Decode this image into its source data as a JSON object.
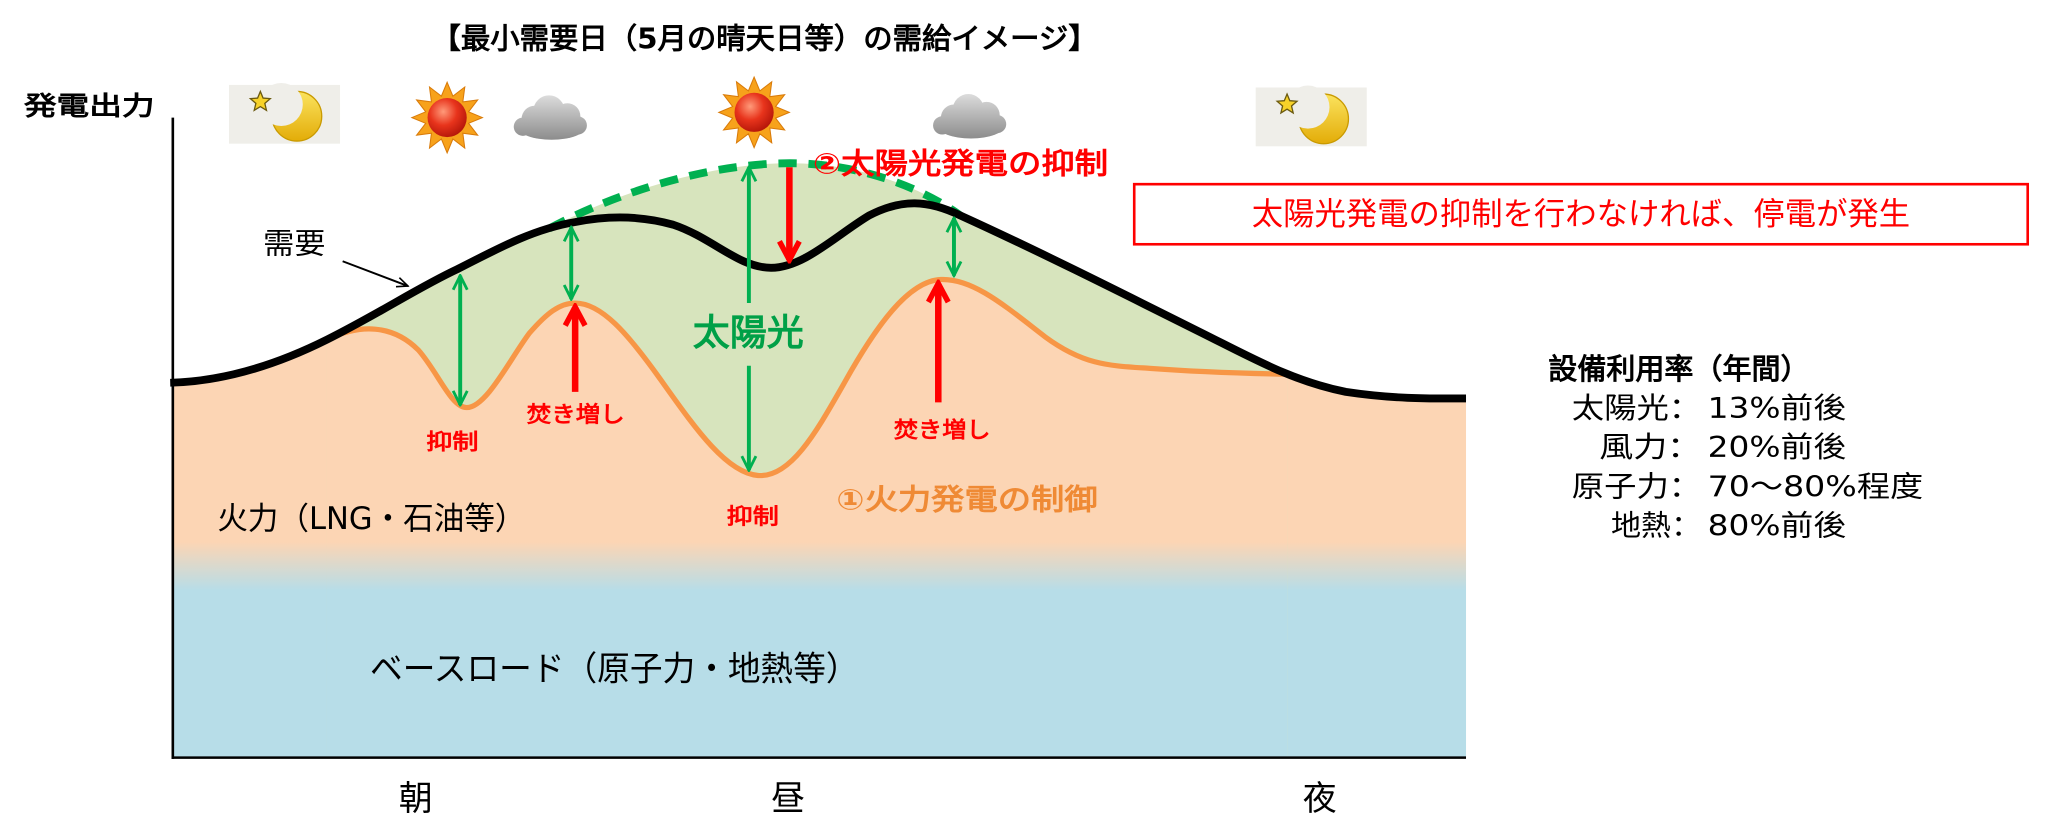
{
  "title": "【最小需要日（5月の晴天日等）の需給イメージ】",
  "axes": {
    "y_label": "発電出力",
    "x_labels": [
      "朝",
      "昼",
      "夜"
    ]
  },
  "weather_icons": [
    "moon-icon",
    "sun-icon",
    "cloud-icon",
    "sun-icon",
    "cloud-icon",
    "moon-icon"
  ],
  "curves": {
    "demand_label": "需要",
    "solar_label": "太陽光",
    "solar_curtailment_label": "②太陽光発電の抑制",
    "thermal_control_label": "①火力発電の制御"
  },
  "annotations": {
    "suppress_morning": "抑制",
    "boost_morning": "焚き増し",
    "suppress_noon": "抑制",
    "boost_afternoon": "焚き増し"
  },
  "areas": {
    "thermal": "火力（LNG・石油等）",
    "baseload": "ベースロード（原子力・地熱等）"
  },
  "callout": "太陽光発電の抑制を行わなければ、停電が発生",
  "utilization": {
    "heading": "設備利用率（年間）",
    "rows": [
      {
        "source": "太陽光：",
        "value": "13%前後"
      },
      {
        "source": "風力：",
        "value": "20%前後"
      },
      {
        "source": "原子力：",
        "value": "70～80%程度"
      },
      {
        "source": "地熱：",
        "value": "80%前後"
      }
    ]
  },
  "colors": {
    "baseload_area": "#b7dde8",
    "thermal_area": "#fcd5b4",
    "solar_area": "#d7e4bd",
    "demand_line": "#000000",
    "thermal_line": "#f79646",
    "solar_line": "#00b050",
    "curtailment": "#ff0000"
  }
}
